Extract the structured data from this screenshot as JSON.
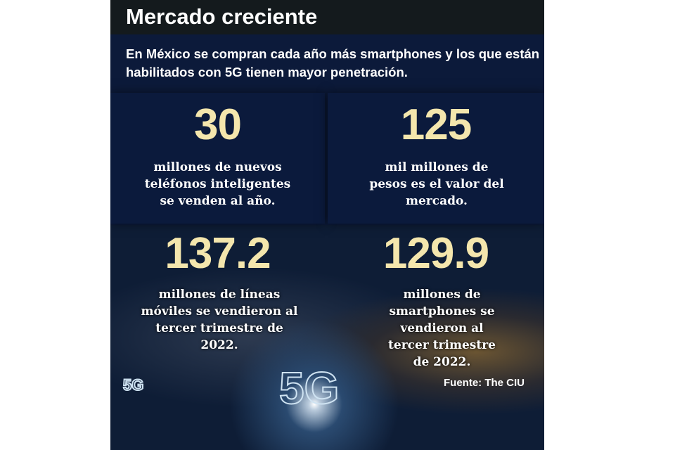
{
  "title": "Mercado creciente",
  "intro": "En México se compran cada año más smartphones y los que están habilitados con 5G tienen mayor penetración.",
  "stats": [
    {
      "value": "30",
      "text": "millones de nuevos teléfonos inteligentes se venden al año."
    },
    {
      "value": "125",
      "text": "mil millones de pesos es el valor del mercado."
    },
    {
      "value": "137.2",
      "text": "millones de líneas móviles se vendieron al tercer trimestre de 2022."
    },
    {
      "value": "129.9",
      "text": "millones de smartphones se vendieron al tercer trimestre de 2022."
    }
  ],
  "badge_small": "5G",
  "badge_large": "5G",
  "source": "Fuente: The CIU"
}
